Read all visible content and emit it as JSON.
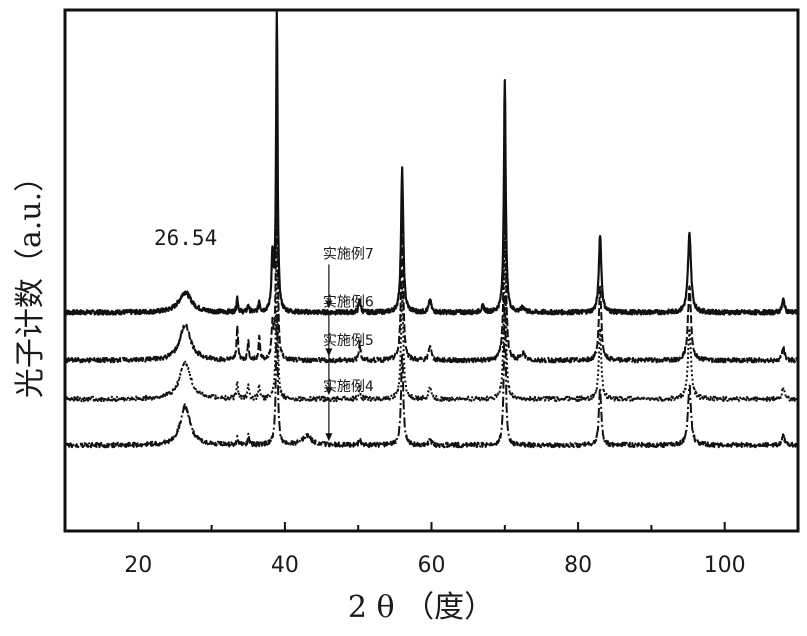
{
  "chart_data": {
    "type": "line",
    "title": "",
    "xlabel": "2 θ （度）",
    "ylabel": "光子计数（a.u.）",
    "xlim": [
      10,
      110
    ],
    "xticks": [
      20,
      40,
      60,
      80,
      100
    ],
    "grid": false,
    "annotations": [
      {
        "text": "26.54",
        "x": 26.54
      }
    ],
    "peaks_2theta": [
      26.54,
      33.5,
      35.0,
      36.5,
      38.5,
      50.2,
      56.0,
      59.8,
      70.0,
      83.0,
      95.2,
      108.0
    ],
    "series": [
      {
        "name": "实施例7",
        "style": "solid",
        "label_at_2theta": 46,
        "baseline": 0.82,
        "peaks": [
          {
            "x": 26.4,
            "h": 0.22,
            "w": 1.0
          },
          {
            "x": 33.5,
            "h": 0.16,
            "w": 0.12
          },
          {
            "x": 35.0,
            "h": 0.08,
            "w": 0.12
          },
          {
            "x": 36.5,
            "h": 0.12,
            "w": 0.12
          },
          {
            "x": 38.3,
            "h": 0.6,
            "w": 0.15
          },
          {
            "x": 38.9,
            "h": 3.35,
            "w": 0.12
          },
          {
            "x": 50.2,
            "h": 0.14,
            "w": 0.15
          },
          {
            "x": 56.0,
            "h": 1.55,
            "w": 0.18
          },
          {
            "x": 59.8,
            "h": 0.13,
            "w": 0.2
          },
          {
            "x": 67.0,
            "h": 0.06,
            "w": 0.25
          },
          {
            "x": 70.0,
            "h": 2.5,
            "w": 0.15
          },
          {
            "x": 72.5,
            "h": 0.05,
            "w": 0.3
          },
          {
            "x": 83.0,
            "h": 0.85,
            "w": 0.2
          },
          {
            "x": 95.2,
            "h": 0.85,
            "w": 0.25
          },
          {
            "x": 108.0,
            "h": 0.14,
            "w": 0.2
          }
        ]
      },
      {
        "name": "实施例6",
        "style": "dash",
        "label_at_2theta": 46,
        "baseline": 0.3,
        "peaks": [
          {
            "x": 26.4,
            "h": 0.38,
            "w": 0.9
          },
          {
            "x": 33.5,
            "h": 0.36,
            "w": 0.12
          },
          {
            "x": 35.0,
            "h": 0.2,
            "w": 0.12
          },
          {
            "x": 36.5,
            "h": 0.25,
            "w": 0.12
          },
          {
            "x": 38.3,
            "h": 0.35,
            "w": 0.15
          },
          {
            "x": 38.9,
            "h": 2.5,
            "w": 0.12
          },
          {
            "x": 50.2,
            "h": 0.18,
            "w": 0.15
          },
          {
            "x": 56.0,
            "h": 1.4,
            "w": 0.18
          },
          {
            "x": 59.8,
            "h": 0.16,
            "w": 0.2
          },
          {
            "x": 70.0,
            "h": 2.3,
            "w": 0.15
          },
          {
            "x": 72.5,
            "h": 0.08,
            "w": 0.3
          },
          {
            "x": 83.0,
            "h": 0.8,
            "w": 0.2
          },
          {
            "x": 95.2,
            "h": 0.8,
            "w": 0.25
          },
          {
            "x": 108.0,
            "h": 0.14,
            "w": 0.2
          }
        ]
      },
      {
        "name": "实施例5",
        "style": "dot",
        "label_at_2theta": 46,
        "baseline": -0.12,
        "peaks": [
          {
            "x": 26.4,
            "h": 0.4,
            "w": 0.9
          },
          {
            "x": 33.5,
            "h": 0.2,
            "w": 0.12
          },
          {
            "x": 35.0,
            "h": 0.15,
            "w": 0.12
          },
          {
            "x": 36.5,
            "h": 0.15,
            "w": 0.12
          },
          {
            "x": 38.9,
            "h": 1.9,
            "w": 0.12
          },
          {
            "x": 50.2,
            "h": 0.12,
            "w": 0.15
          },
          {
            "x": 56.0,
            "h": 1.2,
            "w": 0.18
          },
          {
            "x": 59.8,
            "h": 0.15,
            "w": 0.2
          },
          {
            "x": 70.0,
            "h": 2.0,
            "w": 0.15
          },
          {
            "x": 83.0,
            "h": 0.75,
            "w": 0.2
          },
          {
            "x": 95.2,
            "h": 0.75,
            "w": 0.25
          },
          {
            "x": 108.0,
            "h": 0.12,
            "w": 0.2
          }
        ]
      },
      {
        "name": "实施例4",
        "style": "dashdot",
        "label_at_2theta": 46,
        "baseline": -0.62,
        "peaks": [
          {
            "x": 26.4,
            "h": 0.42,
            "w": 0.8
          },
          {
            "x": 33.5,
            "h": 0.08,
            "w": 0.12
          },
          {
            "x": 35.0,
            "h": 0.1,
            "w": 0.12
          },
          {
            "x": 38.9,
            "h": 1.4,
            "w": 0.15
          },
          {
            "x": 43.0,
            "h": 0.1,
            "w": 0.8
          },
          {
            "x": 50.2,
            "h": 0.06,
            "w": 0.15
          },
          {
            "x": 56.0,
            "h": 1.0,
            "w": 0.18
          },
          {
            "x": 59.8,
            "h": 0.06,
            "w": 0.2
          },
          {
            "x": 70.0,
            "h": 1.6,
            "w": 0.15
          },
          {
            "x": 83.0,
            "h": 0.6,
            "w": 0.2
          },
          {
            "x": 95.2,
            "h": 0.65,
            "w": 0.25
          },
          {
            "x": 108.0,
            "h": 0.1,
            "w": 0.2
          }
        ]
      }
    ]
  }
}
